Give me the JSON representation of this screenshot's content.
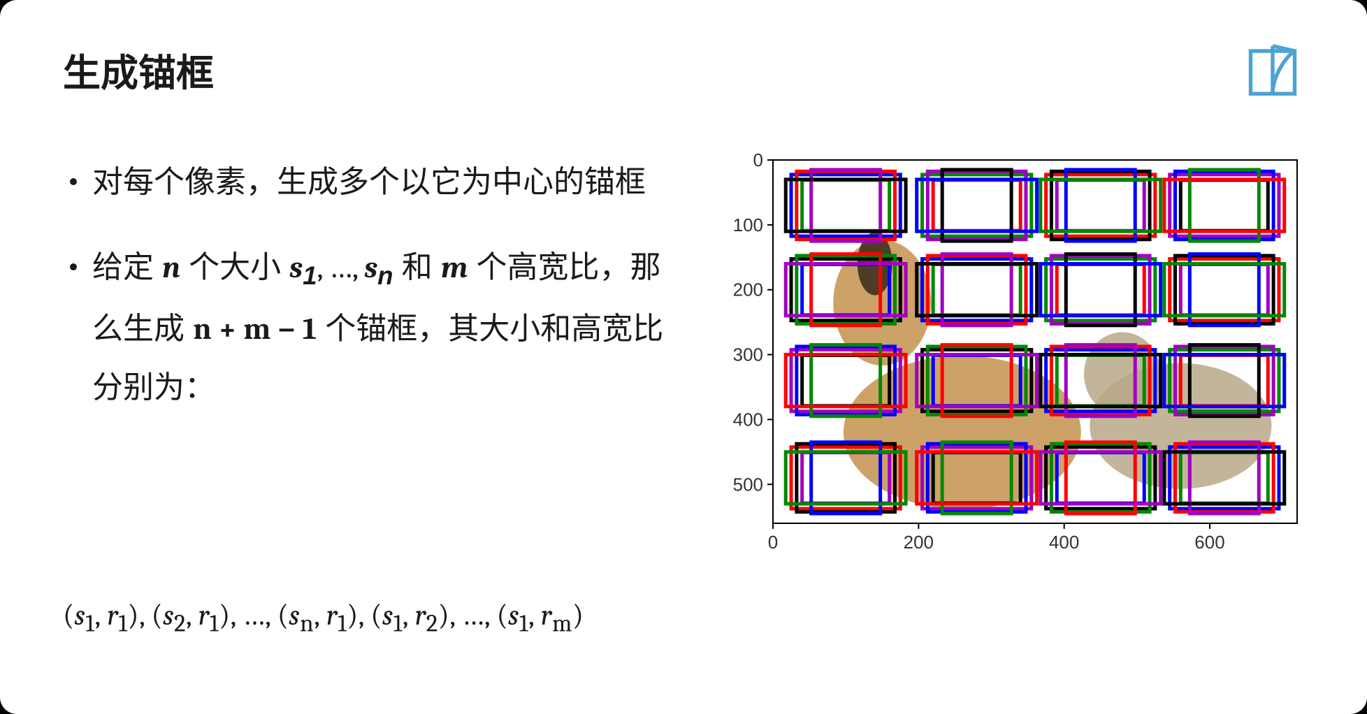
{
  "title": "生成锚框",
  "logo_color": "#4ba3d3",
  "bullets": [
    {
      "pre": "对每个像素，生成多个以它为中心的锚框",
      "type": "plain"
    },
    {
      "type": "math2"
    }
  ],
  "bullet2_parts": {
    "p1": "给定 ",
    "n": "n",
    "p2": " 个大小 ",
    "s1": "s",
    "s1sub": "1",
    "ellipsis": ", …, ",
    "sn": "s",
    "snsub": "n",
    "p3": " 和 ",
    "m": "m",
    "p4": " 个高宽比，那么生成 ",
    "expr": "n + m − 1",
    "p5": " 个锚框，其大小和高宽比分别为："
  },
  "formula_pairs": [
    {
      "s": "s",
      "si": "1",
      "r": "r",
      "ri": "1"
    },
    {
      "s": "s",
      "si": "2",
      "r": "r",
      "ri": "1"
    },
    {
      "ell": "…"
    },
    {
      "s": "s",
      "si": "n",
      "r": "r",
      "ri": "1"
    },
    {
      "s": "s",
      "si": "1",
      "r": "r",
      "ri": "2"
    },
    {
      "ell": "…"
    },
    {
      "s": "s",
      "si": "1",
      "r": "r",
      "ri": "m"
    }
  ],
  "chart": {
    "x_range": [
      0,
      720
    ],
    "y_range": [
      0,
      560
    ],
    "y_ticks": [
      0,
      100,
      200,
      300,
      400,
      500
    ],
    "x_ticks": [
      0,
      200,
      400,
      600
    ],
    "tick_fontsize": 26,
    "border_color": "#000000",
    "tick_color": "#333333",
    "anchor_centers_x": [
      100,
      280,
      450,
      620
    ],
    "anchor_centers_y": [
      70,
      200,
      340,
      490
    ],
    "box_stroke_width": 5,
    "boxes_per_center": [
      {
        "w": 150,
        "h": 95,
        "color": "#0000ff"
      },
      {
        "w": 120,
        "h": 78,
        "color": "#008800"
      },
      {
        "w": 135,
        "h": 105,
        "color": "#ff0000"
      },
      {
        "w": 95,
        "h": 110,
        "color": "#a000c0"
      },
      {
        "w": 165,
        "h": 80,
        "color": "#000000"
      }
    ],
    "color_rotation": true,
    "bg_color": "#ffffff",
    "dog_color": "#c89858",
    "dog_dark": "#3a2a1a"
  }
}
